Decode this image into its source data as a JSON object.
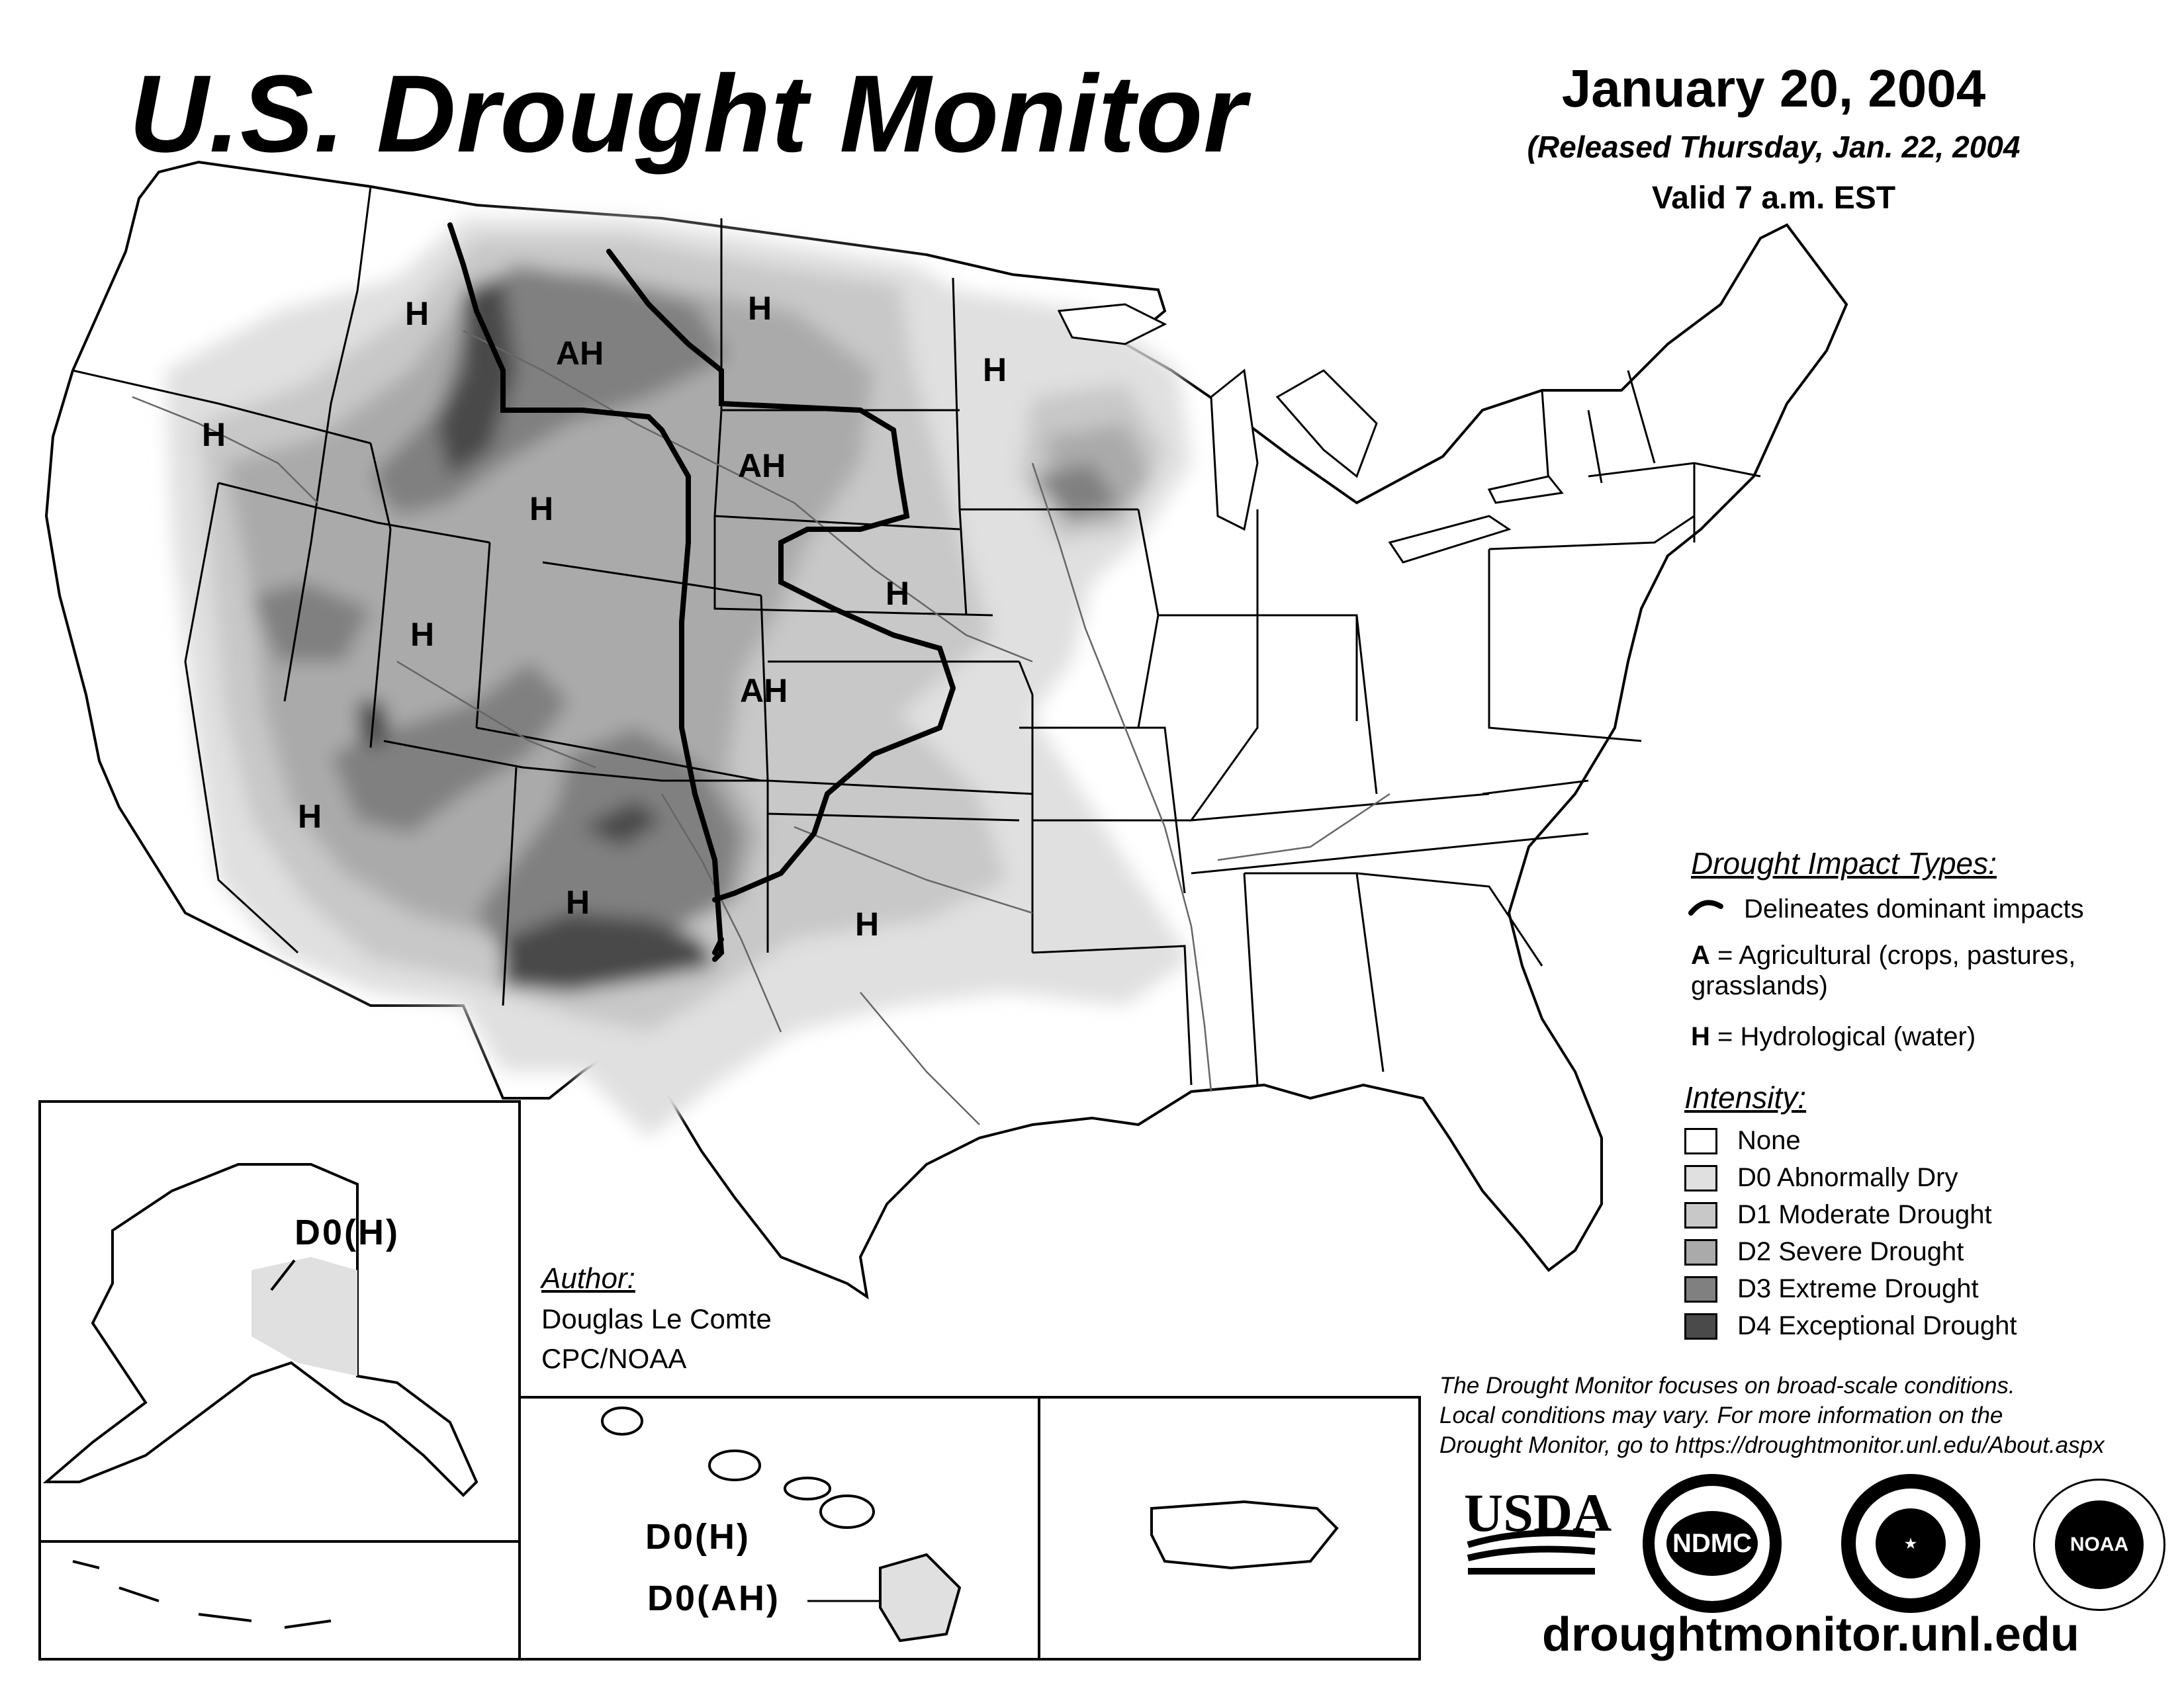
{
  "header": {
    "title": "U.S. Drought Monitor",
    "date": "January 20, 2004",
    "released": "(Released Thursday, Jan. 22, 2004",
    "valid": "Valid 7 a.m. EST"
  },
  "map_labels": {
    "h_idaho": "H",
    "ah_montana": "AH",
    "h_nd": "H",
    "h_mn": "H",
    "h_oregon": "H",
    "ah_sd": "AH",
    "h_wyoming": "H",
    "h_nebraska": "H",
    "h_utah": "H",
    "ah_kansas": "AH",
    "h_arizona": "H",
    "h_newmexico": "H",
    "h_oklahoma": "H"
  },
  "insets": {
    "alaska_label": "D0(H)",
    "hawaii_label_1": "D0(H)",
    "hawaii_label_2": "D0(AH)"
  },
  "author": {
    "heading": "Author:",
    "name": "Douglas Le Comte",
    "org": "CPC/NOAA"
  },
  "legend": {
    "impact_heading": "Drought Impact Types:",
    "impact_line": "Delineates dominant impacts",
    "a_key": "A",
    "a_desc": "= Agricultural (crops, pastures,",
    "a_desc2": "grasslands)",
    "h_key": "H",
    "h_desc": "= Hydrological (water)",
    "intensity_heading": "Intensity:",
    "items": [
      {
        "label": "None",
        "color": "#ffffff"
      },
      {
        "label": "D0 Abnormally Dry",
        "color": "#e0e0e0"
      },
      {
        "label": "D1 Moderate Drought",
        "color": "#c8c8c8"
      },
      {
        "label": "D2 Severe Drought",
        "color": "#aaaaaa"
      },
      {
        "label": "D3 Extreme Drought",
        "color": "#808080"
      },
      {
        "label": "D4 Exceptional Drought",
        "color": "#4a4a4a"
      }
    ]
  },
  "footer": {
    "note_1": "The Drought Monitor focuses on broad-scale conditions.",
    "note_2": "Local conditions may vary. For more information on the",
    "note_3": "Drought Monitor, go to https://droughtmonitor.unl.edu/About.aspx",
    "url": "droughtmonitor.unl.edu",
    "logo_usda": "USDA",
    "logo_ndmc": "NDMC",
    "logo_noaa": "NOAA"
  }
}
